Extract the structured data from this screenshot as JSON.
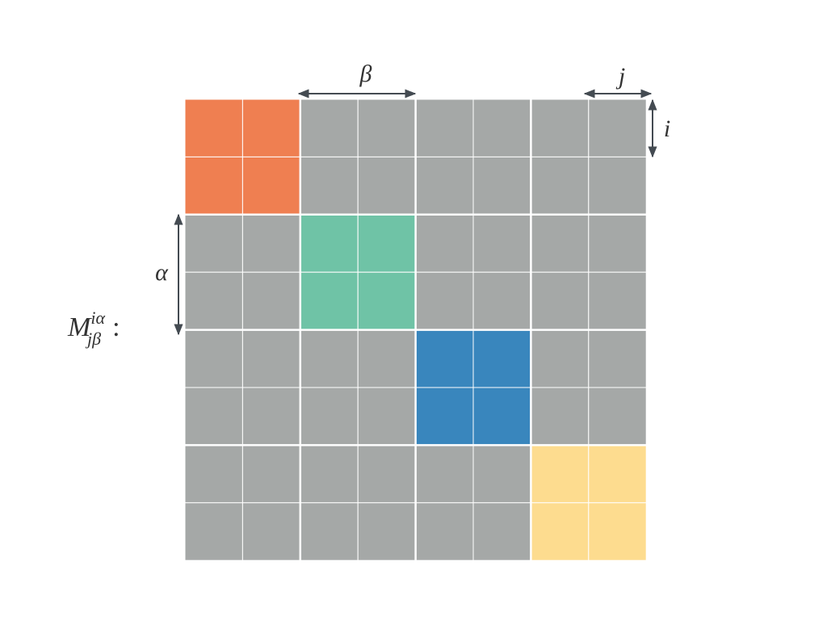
{
  "labels": {
    "beta": "β",
    "j": "j",
    "i": "i",
    "alpha": "α"
  },
  "matrix": {
    "symbol": "M",
    "superscript": "iα",
    "subscript": "jβ",
    "suffix": ":"
  }
}
